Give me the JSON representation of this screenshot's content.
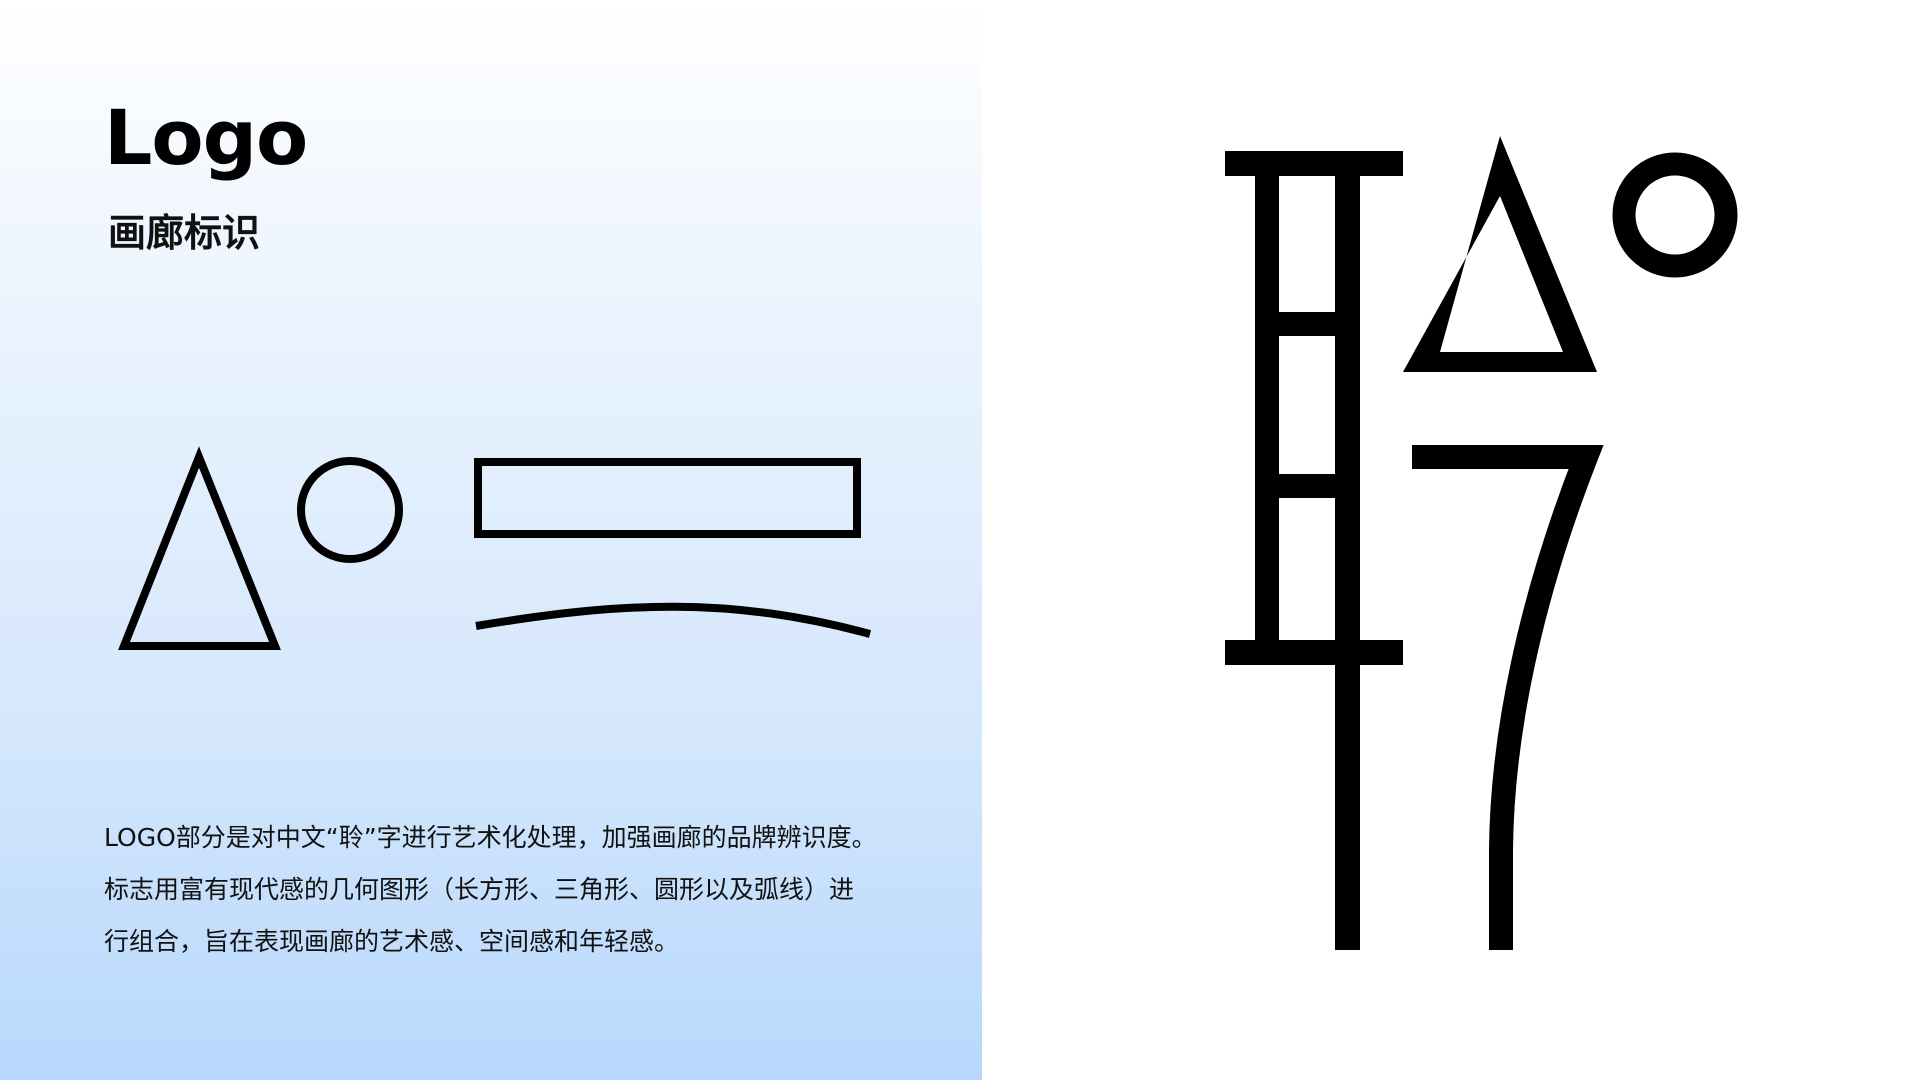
{
  "header": {
    "title": "Logo",
    "subtitle": "画廊标识"
  },
  "description": {
    "lines": [
      "LOGO部分是对中文“聆”字进行艺术化处理，加强画廊的品牌辨识度。",
      "标志用富有现代感的几何图形（长方形、三角形、圆形以及弧线）进",
      "行组合，旨在表现画廊的艺术感、空间感和年轻感。"
    ]
  },
  "shapes": {
    "items": [
      "triangle-icon",
      "circle-icon",
      "rectangle-icon",
      "arc-icon"
    ]
  },
  "logo": {
    "character": "聆",
    "icon": "ling-logo-mark"
  },
  "colors": {
    "ink": "#000000",
    "gradient_top": "#ffffff",
    "gradient_bottom": "#b7d8fc"
  }
}
